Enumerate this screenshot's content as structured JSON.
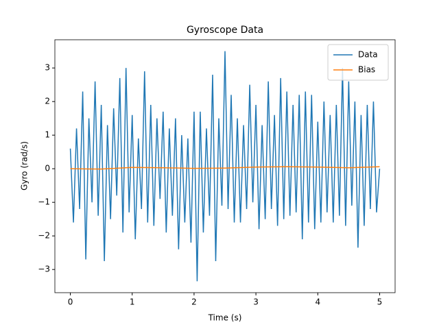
{
  "chart_data": {
    "type": "line",
    "title": "Gyroscope Data",
    "xlabel": "Time (s)",
    "ylabel": "Gyro (rad/s)",
    "xlim": [
      -0.25,
      5.25
    ],
    "ylim": [
      -3.69,
      3.84
    ],
    "xticks": [
      0,
      1,
      2,
      3,
      4,
      5
    ],
    "yticks": [
      {
        "value": -3,
        "label": "−3"
      },
      {
        "value": -2,
        "label": "−2"
      },
      {
        "value": -1,
        "label": "−1"
      },
      0,
      1,
      2,
      3
    ],
    "legend": "upper right",
    "series": [
      {
        "name": "Data",
        "color": "#1f77b4",
        "x": [
          0,
          0.05,
          0.1,
          0.15,
          0.2,
          0.25,
          0.3,
          0.35,
          0.4,
          0.45,
          0.5,
          0.55,
          0.6,
          0.65,
          0.7,
          0.75,
          0.8,
          0.85,
          0.9,
          0.95,
          1,
          1.05,
          1.1,
          1.15,
          1.2,
          1.25,
          1.3,
          1.35,
          1.4,
          1.45,
          1.5,
          1.55,
          1.6,
          1.65,
          1.7,
          1.75,
          1.8,
          1.85,
          1.9,
          1.95,
          2,
          2.05,
          2.1,
          2.15,
          2.2,
          2.25,
          2.3,
          2.35,
          2.4,
          2.45,
          2.5,
          2.55,
          2.6,
          2.65,
          2.7,
          2.75,
          2.8,
          2.85,
          2.9,
          2.95,
          3,
          3.05,
          3.1,
          3.15,
          3.2,
          3.25,
          3.3,
          3.35,
          3.4,
          3.45,
          3.5,
          3.55,
          3.6,
          3.65,
          3.7,
          3.75,
          3.8,
          3.85,
          3.9,
          3.95,
          4,
          4.05,
          4.1,
          4.15,
          4.2,
          4.25,
          4.3,
          4.35,
          4.4,
          4.45,
          4.5,
          4.55,
          4.6,
          4.65,
          4.7,
          4.75,
          4.8,
          4.85,
          4.9,
          4.95,
          5
        ],
        "values": [
          0.6,
          -1.6,
          1.2,
          -1.2,
          2.3,
          -2.7,
          1.5,
          -1.0,
          2.6,
          -1.4,
          1.9,
          -2.75,
          1.3,
          -1.5,
          1.8,
          -0.8,
          2.7,
          -1.9,
          3.0,
          -1.3,
          1.6,
          -2.1,
          0.9,
          -1.2,
          2.9,
          -1.6,
          1.9,
          -1.7,
          1.5,
          -0.9,
          1.7,
          -1.9,
          1.2,
          -1.4,
          1.5,
          -2.4,
          1.0,
          -1.6,
          0.9,
          -2.2,
          1.7,
          -3.35,
          1.7,
          -1.9,
          1.2,
          -1.4,
          2.8,
          -2.75,
          1.5,
          -1.1,
          3.5,
          -1.2,
          2.2,
          -1.6,
          1.5,
          -1.6,
          1.3,
          -1.2,
          2.5,
          -1.0,
          1.9,
          -1.8,
          1.3,
          -1.5,
          2.6,
          -1.2,
          1.6,
          -1.7,
          2.7,
          -1.5,
          2.3,
          -1.4,
          1.9,
          -1.3,
          2.2,
          -2.1,
          2.3,
          -1.6,
          2.2,
          -1.8,
          1.4,
          -1.6,
          2.0,
          -1.3,
          1.6,
          -1.6,
          1.9,
          -1.4,
          3.0,
          -1.7,
          2.6,
          -1.1,
          2.0,
          -2.35,
          1.6,
          -1.7,
          1.9,
          -1.2,
          2.0,
          -1.3,
          0.0
        ]
      },
      {
        "name": "Bias",
        "color": "#ff7f0e",
        "x": [
          0,
          0.5,
          1,
          1.5,
          2,
          2.5,
          3,
          3.5,
          4,
          4.5,
          5
        ],
        "values": [
          0,
          -0.01,
          0.04,
          0.03,
          0.01,
          0.02,
          0.05,
          0.06,
          0.05,
          0.03,
          0.06
        ]
      }
    ]
  }
}
